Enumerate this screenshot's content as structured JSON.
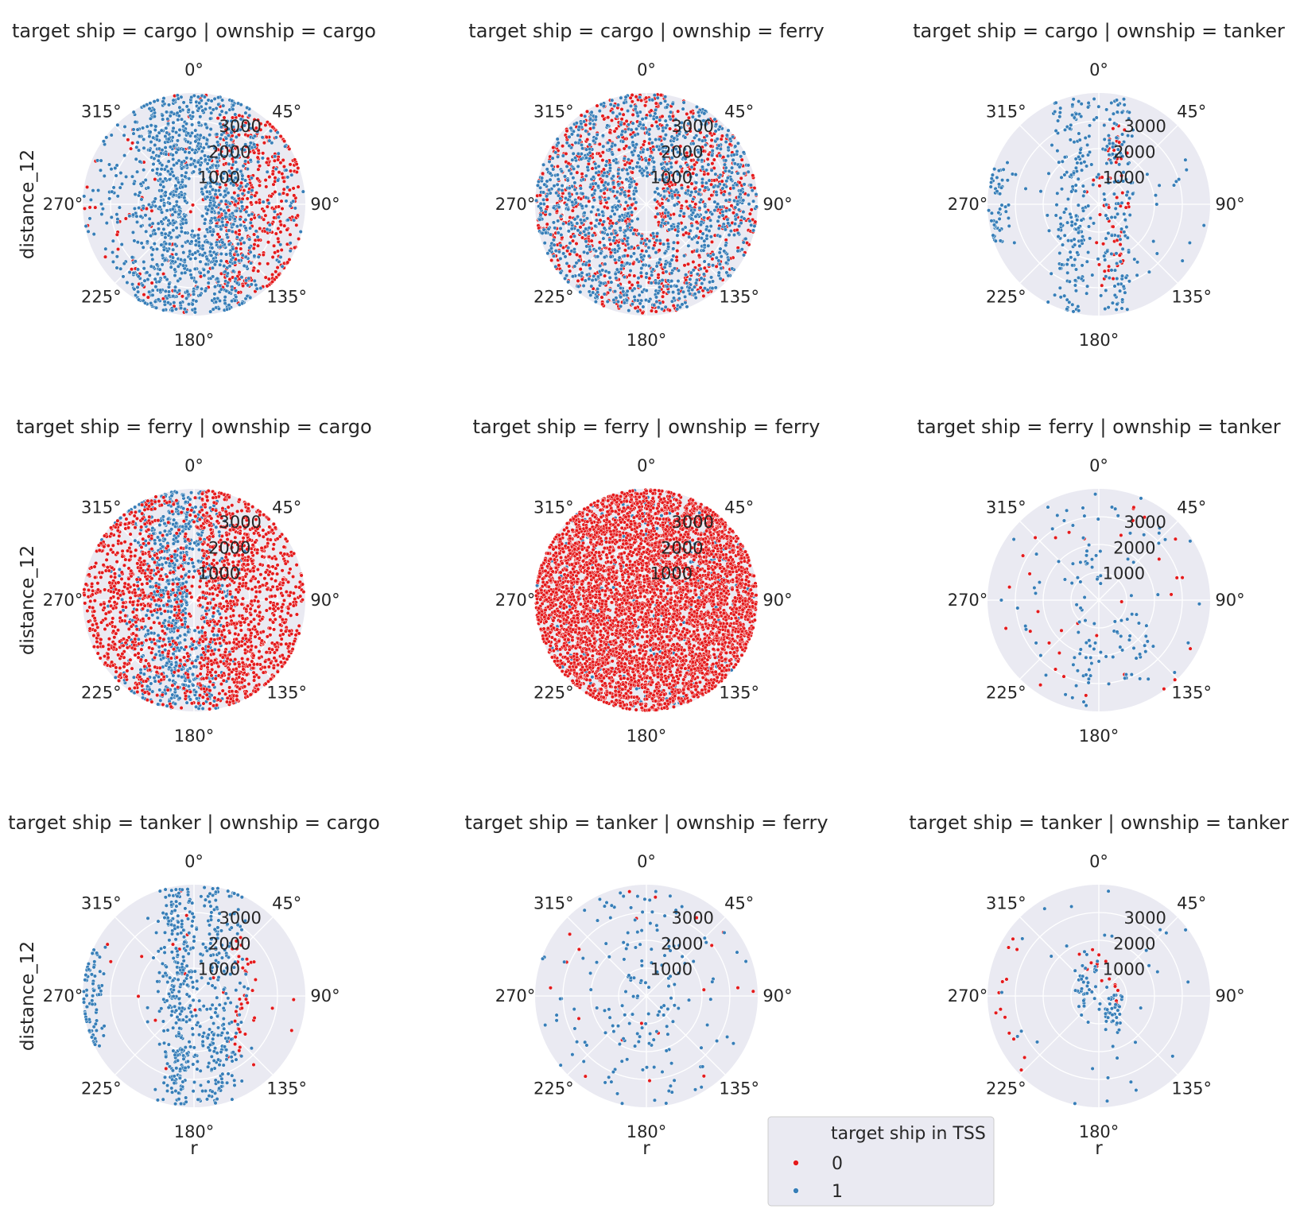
{
  "colors": {
    "hue_0": "#e41a1c",
    "hue_1": "#377eb8",
    "background": "#eaeaf2",
    "grid": "#ffffff",
    "text": "#262626"
  },
  "legend": {
    "title": "target ship in TSS",
    "entries": [
      {
        "label": "0",
        "color": "#e41a1c"
      },
      {
        "label": "1",
        "color": "#377eb8"
      }
    ],
    "placement": "bottom-center"
  },
  "chart_data": {
    "type": "scatter",
    "projection": "polar",
    "theta_direction": "clockwise",
    "theta_zero": "north",
    "theta_tick_labels": [
      "0°",
      "45°",
      "90°",
      "135°",
      "180°",
      "225°",
      "270°",
      "315°"
    ],
    "r_tick_labels": [
      "1000",
      "2000",
      "3000"
    ],
    "r_ticks": [
      1000,
      2000,
      3000
    ],
    "r_lim": [
      0,
      4000
    ],
    "y_label": "distance_12",
    "x_label": "r",
    "hue": "target ship in TSS",
    "grid": true,
    "panels": [
      {
        "title": "target ship = cargo | ownship = cargo",
        "row": 0,
        "col": 0,
        "counts": [
          500,
          1300
        ],
        "pattern": "cargo_cargo"
      },
      {
        "title": "target ship = cargo | ownship = ferry",
        "row": 0,
        "col": 1,
        "counts": [
          900,
          1300
        ],
        "pattern": "cargo_ferry"
      },
      {
        "title": "target ship = cargo | ownship = tanker",
        "row": 0,
        "col": 2,
        "counts": [
          60,
          420
        ],
        "pattern": "cargo_tanker"
      },
      {
        "title": "target ship = ferry | ownship = cargo",
        "row": 1,
        "col": 0,
        "counts": [
          1700,
          900
        ],
        "pattern": "ferry_cargo"
      },
      {
        "title": "target ship = ferry | ownship = ferry",
        "row": 1,
        "col": 1,
        "counts": [
          4800,
          300
        ],
        "pattern": "ferry_ferry"
      },
      {
        "title": "target ship = ferry | ownship = tanker",
        "row": 1,
        "col": 2,
        "counts": [
          35,
          130
        ],
        "pattern": "ferry_tanker"
      },
      {
        "title": "target ship = tanker | ownship = cargo",
        "row": 2,
        "col": 0,
        "counts": [
          60,
          650
        ],
        "pattern": "tanker_cargo"
      },
      {
        "title": "target ship = tanker | ownship = ferry",
        "row": 2,
        "col": 1,
        "counts": [
          20,
          170
        ],
        "pattern": "tanker_ferry"
      },
      {
        "title": "target ship = tanker | ownship = tanker",
        "row": 2,
        "col": 2,
        "counts": [
          30,
          110
        ],
        "pattern": "tanker_tanker"
      }
    ]
  }
}
